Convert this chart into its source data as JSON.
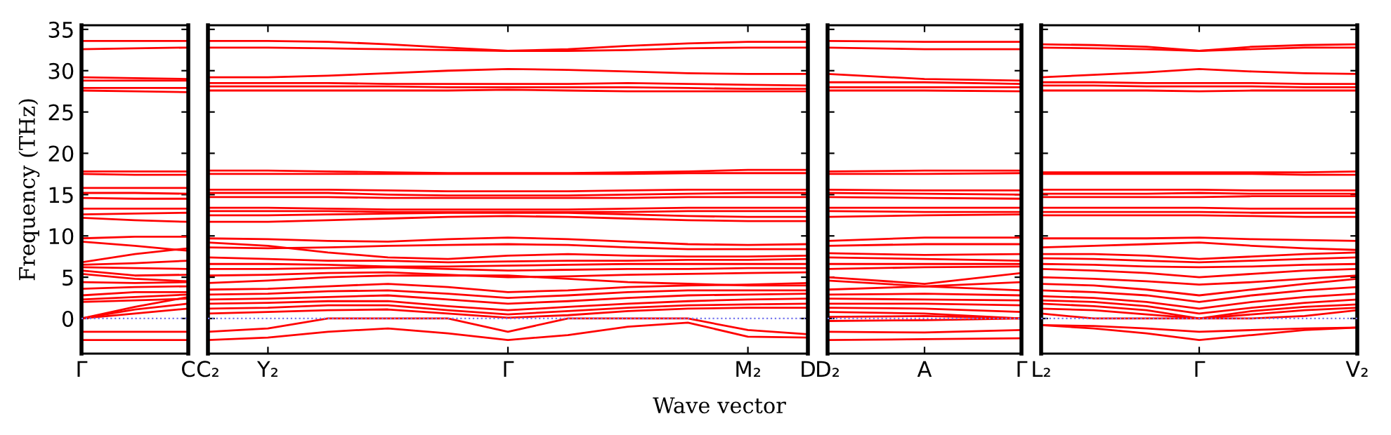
{
  "chart_data": [
    {
      "type": "line",
      "ylabel": "Frequency (THz)",
      "ylim": [
        -4.25,
        35.5
      ],
      "yticks": [
        0,
        5,
        10,
        15,
        20,
        25,
        30,
        35
      ],
      "categories": [
        "Γ",
        null,
        "C"
      ],
      "ref_lines": [
        {
          "axis": "y",
          "value": 0,
          "color": "#7777ee",
          "line_style": "dotted"
        }
      ],
      "series": [
        {
          "color": "#ff0000",
          "values": [
            33.6,
            33.6,
            33.6
          ]
        },
        {
          "color": "#ff0000",
          "values": [
            32.6,
            32.7,
            32.8
          ]
        },
        {
          "color": "#ff0000",
          "values": [
            29.2,
            29.1,
            29.0
          ]
        },
        {
          "color": "#ff0000",
          "values": [
            28.8,
            28.8,
            28.8
          ]
        },
        {
          "color": "#ff0000",
          "values": [
            27.9,
            27.9,
            27.9
          ]
        },
        {
          "color": "#ff0000",
          "values": [
            27.6,
            27.5,
            27.4
          ]
        },
        {
          "color": "#ff0000",
          "values": [
            17.8,
            17.8,
            17.8
          ]
        },
        {
          "color": "#ff0000",
          "values": [
            17.5,
            17.4,
            17.4
          ]
        },
        {
          "color": "#ff0000",
          "values": [
            15.8,
            15.8,
            15.8
          ]
        },
        {
          "color": "#ff0000",
          "values": [
            15.2,
            15.2,
            15.1
          ]
        },
        {
          "color": "#ff0000",
          "values": [
            14.6,
            14.5,
            14.5
          ]
        },
        {
          "color": "#ff0000",
          "values": [
            13.3,
            13.3,
            13.3
          ]
        },
        {
          "color": "#ff0000",
          "values": [
            12.6,
            12.7,
            12.8
          ]
        },
        {
          "color": "#ff0000",
          "values": [
            12.2,
            11.9,
            11.7
          ]
        },
        {
          "color": "#ff0000",
          "values": [
            9.7,
            9.9,
            9.9
          ]
        },
        {
          "color": "#ff0000",
          "values": [
            9.3,
            8.8,
            8.2
          ]
        },
        {
          "color": "#ff0000",
          "values": [
            6.8,
            7.8,
            8.5
          ]
        },
        {
          "color": "#ff0000",
          "values": [
            6.5,
            6.7,
            7.0
          ]
        },
        {
          "color": "#ff0000",
          "values": [
            6.2,
            6.1,
            6.0
          ]
        },
        {
          "color": "#ff0000",
          "values": [
            5.8,
            5.2,
            5.3
          ]
        },
        {
          "color": "#ff0000",
          "values": [
            5.4,
            4.8,
            4.5
          ]
        },
        {
          "color": "#ff0000",
          "values": [
            4.4,
            4.3,
            4.4
          ]
        },
        {
          "color": "#ff0000",
          "values": [
            3.6,
            3.8,
            3.9
          ]
        },
        {
          "color": "#ff0000",
          "values": [
            2.8,
            3.2,
            3.2
          ]
        },
        {
          "color": "#ff0000",
          "values": [
            2.3,
            2.6,
            2.9
          ]
        },
        {
          "color": "#ff0000",
          "values": [
            2.0,
            2.2,
            2.4
          ]
        },
        {
          "color": "#ff0000",
          "values": [
            0.0,
            1.4,
            2.6
          ]
        },
        {
          "color": "#ff0000",
          "values": [
            0.0,
            1.1,
            1.8
          ]
        },
        {
          "color": "#ff0000",
          "values": [
            0.0,
            0.6,
            1.2
          ]
        },
        {
          "color": "#ff0000",
          "values": [
            -1.6,
            -1.6,
            -1.6
          ]
        },
        {
          "color": "#ff0000",
          "values": [
            -2.6,
            -2.6,
            -2.6
          ]
        }
      ]
    },
    {
      "type": "line",
      "xlabel": "Wave vector",
      "tick_labels": "x",
      "ylim": [
        -4.25,
        35.5
      ],
      "yticks": [
        0,
        5,
        10,
        15,
        20,
        25,
        30,
        35
      ],
      "categories": [
        "C₂",
        "Y₂",
        null,
        null,
        null,
        "Γ",
        null,
        null,
        null,
        "M₂",
        "D"
      ],
      "ref_lines": [
        {
          "axis": "y",
          "value": 0,
          "color": "#7777ee",
          "line_style": "dotted"
        }
      ],
      "series": [
        {
          "color": "#ff0000",
          "values": [
            33.6,
            33.6,
            33.5,
            33.2,
            32.8,
            32.4,
            32.6,
            33.0,
            33.3,
            33.5,
            33.5
          ]
        },
        {
          "color": "#ff0000",
          "values": [
            32.8,
            32.8,
            32.7,
            32.6,
            32.5,
            32.4,
            32.4,
            32.5,
            32.7,
            32.8,
            32.8
          ]
        },
        {
          "color": "#ff0000",
          "values": [
            29.2,
            29.2,
            29.4,
            29.7,
            30.0,
            30.2,
            30.1,
            29.9,
            29.7,
            29.6,
            29.6
          ]
        },
        {
          "color": "#ff0000",
          "values": [
            28.5,
            28.5,
            28.5,
            28.4,
            28.4,
            28.4,
            28.4,
            28.5,
            28.4,
            28.3,
            28.2
          ]
        },
        {
          "color": "#ff0000",
          "values": [
            28.1,
            28.1,
            28.1,
            28.1,
            28.0,
            28.0,
            28.0,
            28.0,
            27.9,
            27.8,
            27.8
          ]
        },
        {
          "color": "#ff0000",
          "values": [
            27.6,
            27.6,
            27.6,
            27.6,
            27.6,
            27.7,
            27.6,
            27.5,
            27.5,
            27.5,
            27.5
          ]
        },
        {
          "color": "#ff0000",
          "values": [
            17.9,
            17.9,
            17.8,
            17.7,
            17.6,
            17.6,
            17.6,
            17.7,
            17.8,
            18.0,
            18.0
          ]
        },
        {
          "color": "#ff0000",
          "values": [
            17.5,
            17.5,
            17.5,
            17.5,
            17.5,
            17.5,
            17.5,
            17.5,
            17.6,
            17.6,
            17.6
          ]
        },
        {
          "color": "#ff0000",
          "values": [
            15.6,
            15.6,
            15.6,
            15.5,
            15.4,
            15.4,
            15.4,
            15.5,
            15.6,
            15.6,
            15.6
          ]
        },
        {
          "color": "#ff0000",
          "values": [
            15.2,
            15.2,
            15.2,
            15.0,
            14.9,
            14.9,
            14.9,
            15.0,
            15.1,
            15.2,
            15.2
          ]
        },
        {
          "color": "#ff0000",
          "values": [
            14.7,
            14.7,
            14.7,
            14.6,
            14.6,
            14.6,
            14.6,
            14.6,
            14.7,
            14.7,
            14.7
          ]
        },
        {
          "color": "#ff0000",
          "values": [
            13.4,
            13.4,
            13.3,
            13.2,
            13.2,
            13.2,
            13.2,
            13.3,
            13.4,
            13.4,
            13.4
          ]
        },
        {
          "color": "#ff0000",
          "values": [
            13.0,
            13.0,
            13.0,
            12.9,
            12.9,
            12.9,
            12.9,
            12.9,
            13.0,
            13.0,
            13.0
          ]
        },
        {
          "color": "#ff0000",
          "values": [
            12.5,
            12.5,
            12.6,
            12.7,
            12.8,
            12.8,
            12.8,
            12.6,
            12.4,
            12.3,
            12.3
          ]
        },
        {
          "color": "#ff0000",
          "values": [
            11.7,
            11.7,
            11.9,
            12.1,
            12.3,
            12.4,
            12.3,
            12.1,
            11.9,
            11.8,
            11.8
          ]
        },
        {
          "color": "#ff0000",
          "values": [
            9.7,
            9.6,
            9.4,
            9.3,
            9.6,
            9.8,
            9.6,
            9.3,
            9.0,
            8.9,
            9.0
          ]
        },
        {
          "color": "#ff0000",
          "values": [
            8.6,
            8.5,
            8.6,
            8.8,
            8.9,
            9.0,
            8.9,
            8.6,
            8.4,
            8.4,
            8.4
          ]
        },
        {
          "color": "#ff0000",
          "values": [
            9.2,
            8.8,
            8.0,
            7.4,
            7.2,
            7.6,
            7.8,
            7.6,
            7.5,
            7.5,
            7.6
          ]
        },
        {
          "color": "#ff0000",
          "values": [
            7.4,
            7.2,
            7.0,
            7.0,
            6.8,
            6.9,
            7.0,
            7.0,
            7.1,
            7.1,
            7.2
          ]
        },
        {
          "color": "#ff0000",
          "values": [
            6.6,
            6.6,
            6.5,
            6.3,
            6.3,
            6.4,
            6.5,
            6.6,
            6.6,
            6.6,
            6.6
          ]
        },
        {
          "color": "#ff0000",
          "values": [
            6.0,
            6.0,
            6.1,
            6.2,
            6.0,
            5.8,
            5.9,
            6.0,
            6.0,
            6.1,
            6.1
          ]
        },
        {
          "color": "#ff0000",
          "values": [
            5.2,
            5.3,
            5.5,
            5.6,
            5.3,
            5.0,
            5.1,
            5.3,
            5.4,
            5.5,
            5.6
          ]
        },
        {
          "color": "#ff0000",
          "values": [
            4.3,
            4.6,
            5.0,
            5.2,
            5.2,
            5.2,
            4.8,
            4.4,
            4.2,
            4.0,
            4.0
          ]
        },
        {
          "color": "#ff0000",
          "values": [
            3.5,
            3.6,
            3.9,
            4.2,
            3.8,
            3.2,
            3.4,
            3.8,
            4.0,
            4.1,
            4.3
          ]
        },
        {
          "color": "#ff0000",
          "values": [
            2.9,
            3.0,
            3.3,
            3.4,
            3.0,
            2.5,
            2.8,
            3.2,
            3.4,
            3.4,
            3.4
          ]
        },
        {
          "color": "#ff0000",
          "values": [
            2.3,
            2.4,
            2.6,
            2.8,
            2.3,
            1.8,
            2.1,
            2.5,
            2.8,
            2.9,
            3.0
          ]
        },
        {
          "color": "#ff0000",
          "values": [
            1.8,
            1.9,
            2.1,
            2.1,
            1.5,
            1.0,
            1.4,
            1.8,
            2.1,
            2.3,
            2.4
          ]
        },
        {
          "color": "#ff0000",
          "values": [
            1.2,
            1.3,
            1.6,
            1.6,
            1.0,
            0.5,
            0.9,
            1.3,
            1.6,
            1.7,
            1.8
          ]
        },
        {
          "color": "#ff0000",
          "values": [
            0.6,
            0.8,
            1.0,
            1.1,
            0.6,
            0.1,
            0.4,
            0.9,
            1.2,
            1.3,
            1.3
          ]
        },
        {
          "color": "#ff0000",
          "values": [
            -1.6,
            -1.2,
            0.0,
            0.0,
            0.0,
            -1.6,
            0.0,
            0.0,
            0.0,
            -1.4,
            -1.9
          ]
        },
        {
          "color": "#ff0000",
          "values": [
            -2.6,
            -2.3,
            -1.6,
            -1.2,
            -1.8,
            -2.6,
            -2.0,
            -1.0,
            -0.5,
            -2.2,
            -2.3
          ]
        }
      ]
    },
    {
      "type": "line",
      "tick_labels": "x",
      "ylim": [
        -4.25,
        35.5
      ],
      "yticks": [
        0,
        5,
        10,
        15,
        20,
        25,
        30,
        35
      ],
      "categories": [
        "D₂",
        "A",
        "Γ"
      ],
      "ref_lines": [
        {
          "axis": "y",
          "value": 0,
          "color": "#7777ee",
          "line_style": "dotted"
        }
      ],
      "series": [
        {
          "color": "#ff0000",
          "values": [
            33.6,
            33.5,
            33.5
          ]
        },
        {
          "color": "#ff0000",
          "values": [
            32.8,
            32.6,
            32.6
          ]
        },
        {
          "color": "#ff0000",
          "values": [
            29.6,
            29.0,
            28.8
          ]
        },
        {
          "color": "#ff0000",
          "values": [
            28.6,
            28.6,
            28.4
          ]
        },
        {
          "color": "#ff0000",
          "values": [
            28.0,
            28.0,
            28.0
          ]
        },
        {
          "color": "#ff0000",
          "values": [
            27.6,
            27.6,
            27.5
          ]
        },
        {
          "color": "#ff0000",
          "values": [
            17.8,
            17.9,
            17.9
          ]
        },
        {
          "color": "#ff0000",
          "values": [
            17.5,
            17.5,
            17.6
          ]
        },
        {
          "color": "#ff0000",
          "values": [
            15.6,
            15.5,
            15.5
          ]
        },
        {
          "color": "#ff0000",
          "values": [
            15.2,
            15.1,
            15.0
          ]
        },
        {
          "color": "#ff0000",
          "values": [
            14.7,
            14.6,
            14.5
          ]
        },
        {
          "color": "#ff0000",
          "values": [
            13.4,
            13.4,
            13.4
          ]
        },
        {
          "color": "#ff0000",
          "values": [
            13.0,
            12.9,
            12.9
          ]
        },
        {
          "color": "#ff0000",
          "values": [
            12.3,
            12.5,
            12.6
          ]
        },
        {
          "color": "#ff0000",
          "values": [
            9.4,
            9.8,
            9.8
          ]
        },
        {
          "color": "#ff0000",
          "values": [
            8.8,
            9.0,
            9.0
          ]
        },
        {
          "color": "#ff0000",
          "values": [
            7.9,
            7.7,
            7.8
          ]
        },
        {
          "color": "#ff0000",
          "values": [
            7.4,
            7.2,
            7.0
          ]
        },
        {
          "color": "#ff0000",
          "values": [
            6.6,
            6.6,
            6.6
          ]
        },
        {
          "color": "#ff0000",
          "values": [
            6.0,
            6.2,
            6.3
          ]
        },
        {
          "color": "#ff0000",
          "values": [
            5.0,
            4.2,
            5.5
          ]
        },
        {
          "color": "#ff0000",
          "values": [
            4.6,
            3.9,
            4.4
          ]
        },
        {
          "color": "#ff0000",
          "values": [
            3.5,
            3.9,
            3.4
          ]
        },
        {
          "color": "#ff0000",
          "values": [
            2.9,
            3.0,
            2.8
          ]
        },
        {
          "color": "#ff0000",
          "values": [
            2.4,
            2.3,
            2.2
          ]
        },
        {
          "color": "#ff0000",
          "values": [
            1.8,
            1.8,
            1.6
          ]
        },
        {
          "color": "#ff0000",
          "values": [
            1.3,
            1.2,
            0.8
          ]
        },
        {
          "color": "#ff0000",
          "values": [
            0.8,
            0.6,
            0.0
          ]
        },
        {
          "color": "#ff0000",
          "values": [
            0.2,
            0.3,
            0.0
          ]
        },
        {
          "color": "#ff0000",
          "values": [
            -0.3,
            -0.2,
            0.0
          ]
        },
        {
          "color": "#ff0000",
          "values": [
            -1.6,
            -1.7,
            -1.4
          ]
        },
        {
          "color": "#ff0000",
          "values": [
            -2.6,
            -2.5,
            -2.4
          ]
        }
      ]
    },
    {
      "type": "line",
      "tick_labels": "x",
      "ylim": [
        -4.25,
        35.5
      ],
      "yticks": [
        0,
        5,
        10,
        15,
        20,
        25,
        30,
        35
      ],
      "categories": [
        "L₂",
        null,
        null,
        "Γ",
        null,
        null,
        "V₂"
      ],
      "ref_lines": [
        {
          "axis": "y",
          "value": 0,
          "color": "#7777ee",
          "line_style": "dotted"
        }
      ],
      "series": [
        {
          "color": "#ff0000",
          "values": [
            33.2,
            33.1,
            32.9,
            32.4,
            32.9,
            33.1,
            33.2
          ]
        },
        {
          "color": "#ff0000",
          "values": [
            32.8,
            32.7,
            32.6,
            32.4,
            32.6,
            32.8,
            32.8
          ]
        },
        {
          "color": "#ff0000",
          "values": [
            29.2,
            29.5,
            29.8,
            30.2,
            29.9,
            29.7,
            29.6
          ]
        },
        {
          "color": "#ff0000",
          "values": [
            28.6,
            28.6,
            28.5,
            28.5,
            28.5,
            28.4,
            28.4
          ]
        },
        {
          "color": "#ff0000",
          "values": [
            28.2,
            28.2,
            28.1,
            28.1,
            28.1,
            28.0,
            28.0
          ]
        },
        {
          "color": "#ff0000",
          "values": [
            27.6,
            27.6,
            27.6,
            27.5,
            27.6,
            27.6,
            27.6
          ]
        },
        {
          "color": "#ff0000",
          "values": [
            17.7,
            17.7,
            17.7,
            17.7,
            17.7,
            17.7,
            17.8
          ]
        },
        {
          "color": "#ff0000",
          "values": [
            17.5,
            17.5,
            17.5,
            17.5,
            17.5,
            17.4,
            17.4
          ]
        },
        {
          "color": "#ff0000",
          "values": [
            15.6,
            15.6,
            15.6,
            15.6,
            15.5,
            15.5,
            15.5
          ]
        },
        {
          "color": "#ff0000",
          "values": [
            15.1,
            15.1,
            15.1,
            15.2,
            15.1,
            15.1,
            15.1
          ]
        },
        {
          "color": "#ff0000",
          "values": [
            14.7,
            14.7,
            14.7,
            14.7,
            14.8,
            14.8,
            14.8
          ]
        },
        {
          "color": "#ff0000",
          "values": [
            13.4,
            13.4,
            13.4,
            13.4,
            13.3,
            13.3,
            13.3
          ]
        },
        {
          "color": "#ff0000",
          "values": [
            12.9,
            12.9,
            12.9,
            12.9,
            12.8,
            12.8,
            12.8
          ]
        },
        {
          "color": "#ff0000",
          "values": [
            12.5,
            12.5,
            12.5,
            12.5,
            12.4,
            12.3,
            12.3
          ]
        },
        {
          "color": "#ff0000",
          "values": [
            9.7,
            9.7,
            9.7,
            9.8,
            9.6,
            9.5,
            9.4
          ]
        },
        {
          "color": "#ff0000",
          "values": [
            8.6,
            8.8,
            9.0,
            9.2,
            8.8,
            8.5,
            8.3
          ]
        },
        {
          "color": "#ff0000",
          "values": [
            7.8,
            7.8,
            7.6,
            7.2,
            7.5,
            7.8,
            8.0
          ]
        },
        {
          "color": "#ff0000",
          "values": [
            7.3,
            7.2,
            7.0,
            6.8,
            7.0,
            7.2,
            7.4
          ]
        },
        {
          "color": "#ff0000",
          "values": [
            6.6,
            6.5,
            6.3,
            6.2,
            6.3,
            6.5,
            6.6
          ]
        },
        {
          "color": "#ff0000",
          "values": [
            6.0,
            5.8,
            5.5,
            5.0,
            5.4,
            5.8,
            6.0
          ]
        },
        {
          "color": "#ff0000",
          "values": [
            5.0,
            4.8,
            4.5,
            4.1,
            4.4,
            4.8,
            5.2
          ]
        },
        {
          "color": "#ff0000",
          "values": [
            4.2,
            4.0,
            3.5,
            2.8,
            3.5,
            4.2,
            4.8
          ]
        },
        {
          "color": "#ff0000",
          "values": [
            3.4,
            3.2,
            2.8,
            2.0,
            2.8,
            3.4,
            3.8
          ]
        },
        {
          "color": "#ff0000",
          "values": [
            2.7,
            2.5,
            2.0,
            1.2,
            2.0,
            2.6,
            3.0
          ]
        },
        {
          "color": "#ff0000",
          "values": [
            2.2,
            2.0,
            1.5,
            0.6,
            1.3,
            1.9,
            2.3
          ]
        },
        {
          "color": "#ff0000",
          "values": [
            1.8,
            1.5,
            1.0,
            0.0,
            0.9,
            1.4,
            1.7
          ]
        },
        {
          "color": "#ff0000",
          "values": [
            1.2,
            1.0,
            0.5,
            0.0,
            0.5,
            1.0,
            1.3
          ]
        },
        {
          "color": "#ff0000",
          "values": [
            0.6,
            0.0,
            0.0,
            0.0,
            0.0,
            0.3,
            1.0
          ]
        },
        {
          "color": "#ff0000",
          "values": [
            -0.8,
            -0.9,
            -1.2,
            -1.6,
            -1.4,
            -1.2,
            -1.1
          ]
        },
        {
          "color": "#ff0000",
          "values": [
            -0.8,
            -1.2,
            -1.8,
            -2.6,
            -2.0,
            -1.4,
            -1.1
          ]
        }
      ]
    }
  ]
}
